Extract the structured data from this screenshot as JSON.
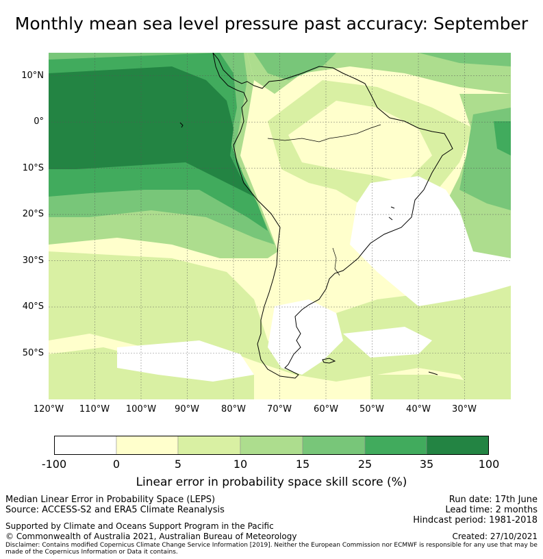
{
  "title": "Monthly mean sea level pressure past accuracy: September",
  "map": {
    "lat_labels": [
      "10°N",
      "0°",
      "10°S",
      "20°S",
      "30°S",
      "40°S",
      "50°S"
    ],
    "lon_labels": [
      "120°W",
      "110°W",
      "100°W",
      "90°W",
      "80°W",
      "70°W",
      "60°W",
      "50°W",
      "40°W",
      "30°W"
    ],
    "extent": {
      "lon_min": -120,
      "lon_max": -20,
      "lat_min": -60,
      "lat_max": 15
    }
  },
  "colorbar": {
    "label": "Linear error in probability space skill score (%)",
    "ticks": [
      "-100",
      "0",
      "5",
      "10",
      "15",
      "25",
      "35",
      "100"
    ],
    "colors": [
      "#ffffff",
      "#ffffcc",
      "#d9f0a3",
      "#addd8e",
      "#78c679",
      "#41ab5d",
      "#238443"
    ]
  },
  "footer": {
    "left1": "Median Linear Error in Probability Space (LEPS)",
    "left2": "Source: ACCESS-S2 and ERA5 Climate Reanalysis",
    "left3": "Supported by Climate and Oceans Support Program in the Pacific",
    "left4": "© Commonwealth of Australia 2021, Australian Bureau of Meteorology",
    "right1": "Run date: 17th June",
    "right2": "Lead time: 2 months",
    "right3": "Hindcast period: 1981-2018",
    "right4": "Created: 27/10/2021",
    "disclaimer": "Disclaimer: Contains modified Copernicus Climate Change Service Information [2019]. Neither the European Commission nor ECMWF is responsible for any use that may be made of the Copernicus Information or Data it contains."
  }
}
